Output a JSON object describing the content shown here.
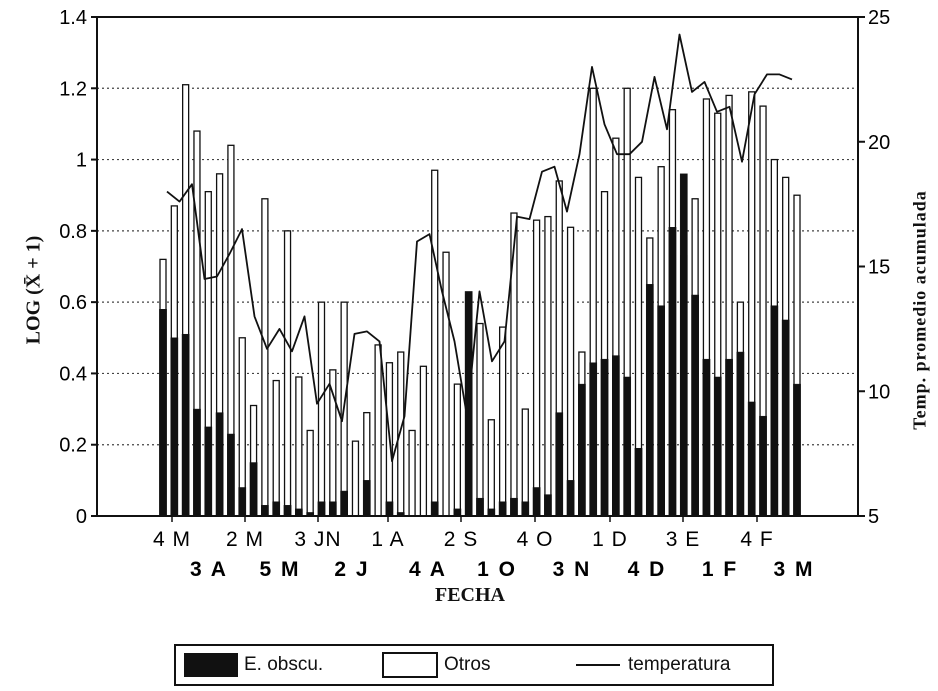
{
  "chart_data": {
    "type": "bar",
    "ylabel": "LOG (X̄ + 1)",
    "y2label": "Temp. promedio acumulada",
    "xlabel": "FECHA",
    "ylim": [
      0,
      1.4
    ],
    "y2lim": [
      5,
      25
    ],
    "yticks": [
      "0",
      "0.2",
      "0.4",
      "0.6",
      "0.8",
      "1",
      "1.2",
      "1.4"
    ],
    "y2ticks": [
      "5",
      "10",
      "15",
      "20",
      "25"
    ],
    "grid": "dotted horizontal",
    "xtick_row1": [
      "4 M",
      "2 M",
      "3 JN",
      "1 A",
      "2 S",
      "4 O",
      "1 D",
      "3 E",
      "4 F"
    ],
    "xtick_row2": [
      "3 A",
      "5 M",
      "2 J",
      "4 A",
      "1 O",
      "3 N",
      "4 D",
      "1 F",
      "3 M"
    ],
    "series": [
      {
        "name": "E. obscu.",
        "values": [
          0.58,
          0.5,
          0.51,
          0.3,
          0.25,
          0.29,
          0.23,
          0.08,
          0.15,
          0.03,
          0.04,
          0.03,
          0.02,
          0.01,
          0.04,
          0.04,
          0.07,
          0.0,
          0.1,
          0.0,
          0.04,
          0.01,
          0.0,
          0.0,
          0.04,
          0.0,
          0.02,
          0.63,
          0.05,
          0.02,
          0.04,
          0.05,
          0.04,
          0.08,
          0.06,
          0.29,
          0.1,
          0.37,
          0.43,
          0.44,
          0.45,
          0.39,
          0.19,
          0.65,
          0.59,
          0.81,
          0.96,
          0.62,
          0.44,
          0.39,
          0.44,
          0.46,
          0.32,
          0.28,
          0.59,
          0.55,
          0.37
        ]
      },
      {
        "name": "Otros",
        "values": [
          0.72,
          0.87,
          1.21,
          1.08,
          0.91,
          0.96,
          1.04,
          0.5,
          0.31,
          0.89,
          0.38,
          0.8,
          0.39,
          0.24,
          0.6,
          0.41,
          0.6,
          0.21,
          0.29,
          0.48,
          0.43,
          0.46,
          0.24,
          0.42,
          0.97,
          0.74,
          0.37,
          0.62,
          0.54,
          0.27,
          0.53,
          0.85,
          0.3,
          0.83,
          0.84,
          0.94,
          0.81,
          0.46,
          1.2,
          0.91,
          1.06,
          1.2,
          0.95,
          0.78,
          0.98,
          1.14,
          0.73,
          0.89,
          1.17,
          1.13,
          1.18,
          0.6,
          1.19,
          1.15,
          1.0,
          0.95,
          0.9
        ]
      }
    ],
    "temperature": {
      "name": "temperatura",
      "values": [
        18.0,
        17.6,
        18.3,
        14.5,
        14.6,
        15.5,
        16.5,
        13.0,
        11.7,
        12.5,
        11.6,
        13.0,
        9.5,
        10.3,
        8.8,
        12.3,
        12.4,
        12.0,
        7.2,
        9.0,
        16.0,
        16.3,
        14.0,
        12.0,
        9.0,
        14.0,
        11.2,
        12.0,
        17.0,
        16.9,
        18.8,
        19.0,
        17.2,
        19.5,
        23.0,
        20.7,
        19.5,
        19.5,
        20.0,
        22.6,
        20.5,
        24.3,
        22.0,
        22.4,
        21.2,
        21.4,
        19.2,
        21.9,
        22.7,
        22.7,
        22.5
      ]
    }
  },
  "legend": {
    "eobscu": "E. obscu.",
    "otros": "Otros",
    "temperatura": "temperatura"
  }
}
